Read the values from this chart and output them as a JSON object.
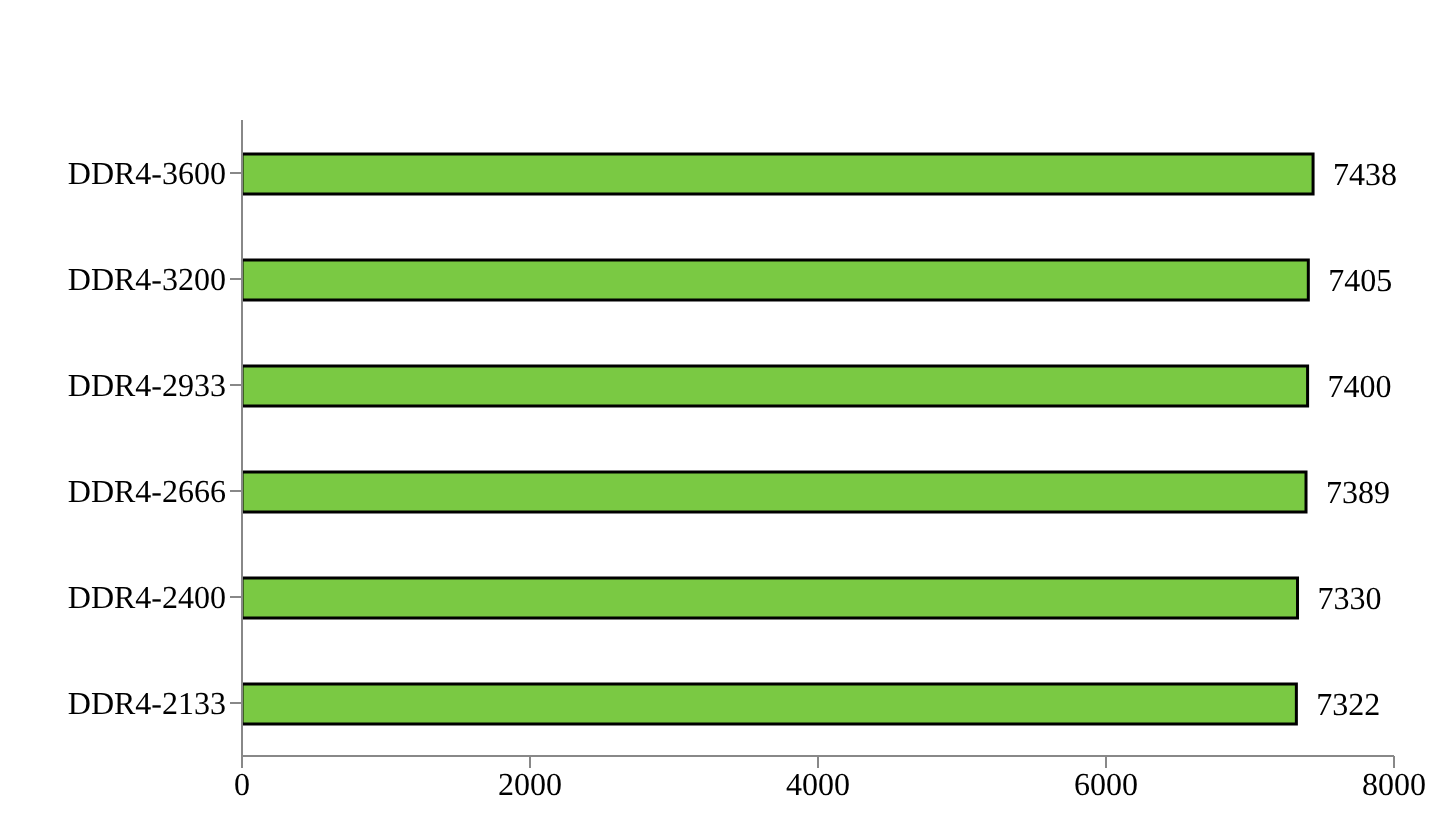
{
  "chart_data": {
    "type": "bar",
    "orientation": "horizontal",
    "categories": [
      "DDR4-3600",
      "DDR4-3200",
      "DDR4-2933",
      "DDR4-2666",
      "DDR4-2400",
      "DDR4-2133"
    ],
    "values": [
      7438,
      7405,
      7400,
      7389,
      7330,
      7322
    ],
    "color": "#7ac943",
    "xlim": [
      0,
      8000
    ],
    "xticks": [
      0,
      2000,
      4000,
      6000,
      8000
    ],
    "data_labels": true,
    "grid": false,
    "legend": false
  }
}
